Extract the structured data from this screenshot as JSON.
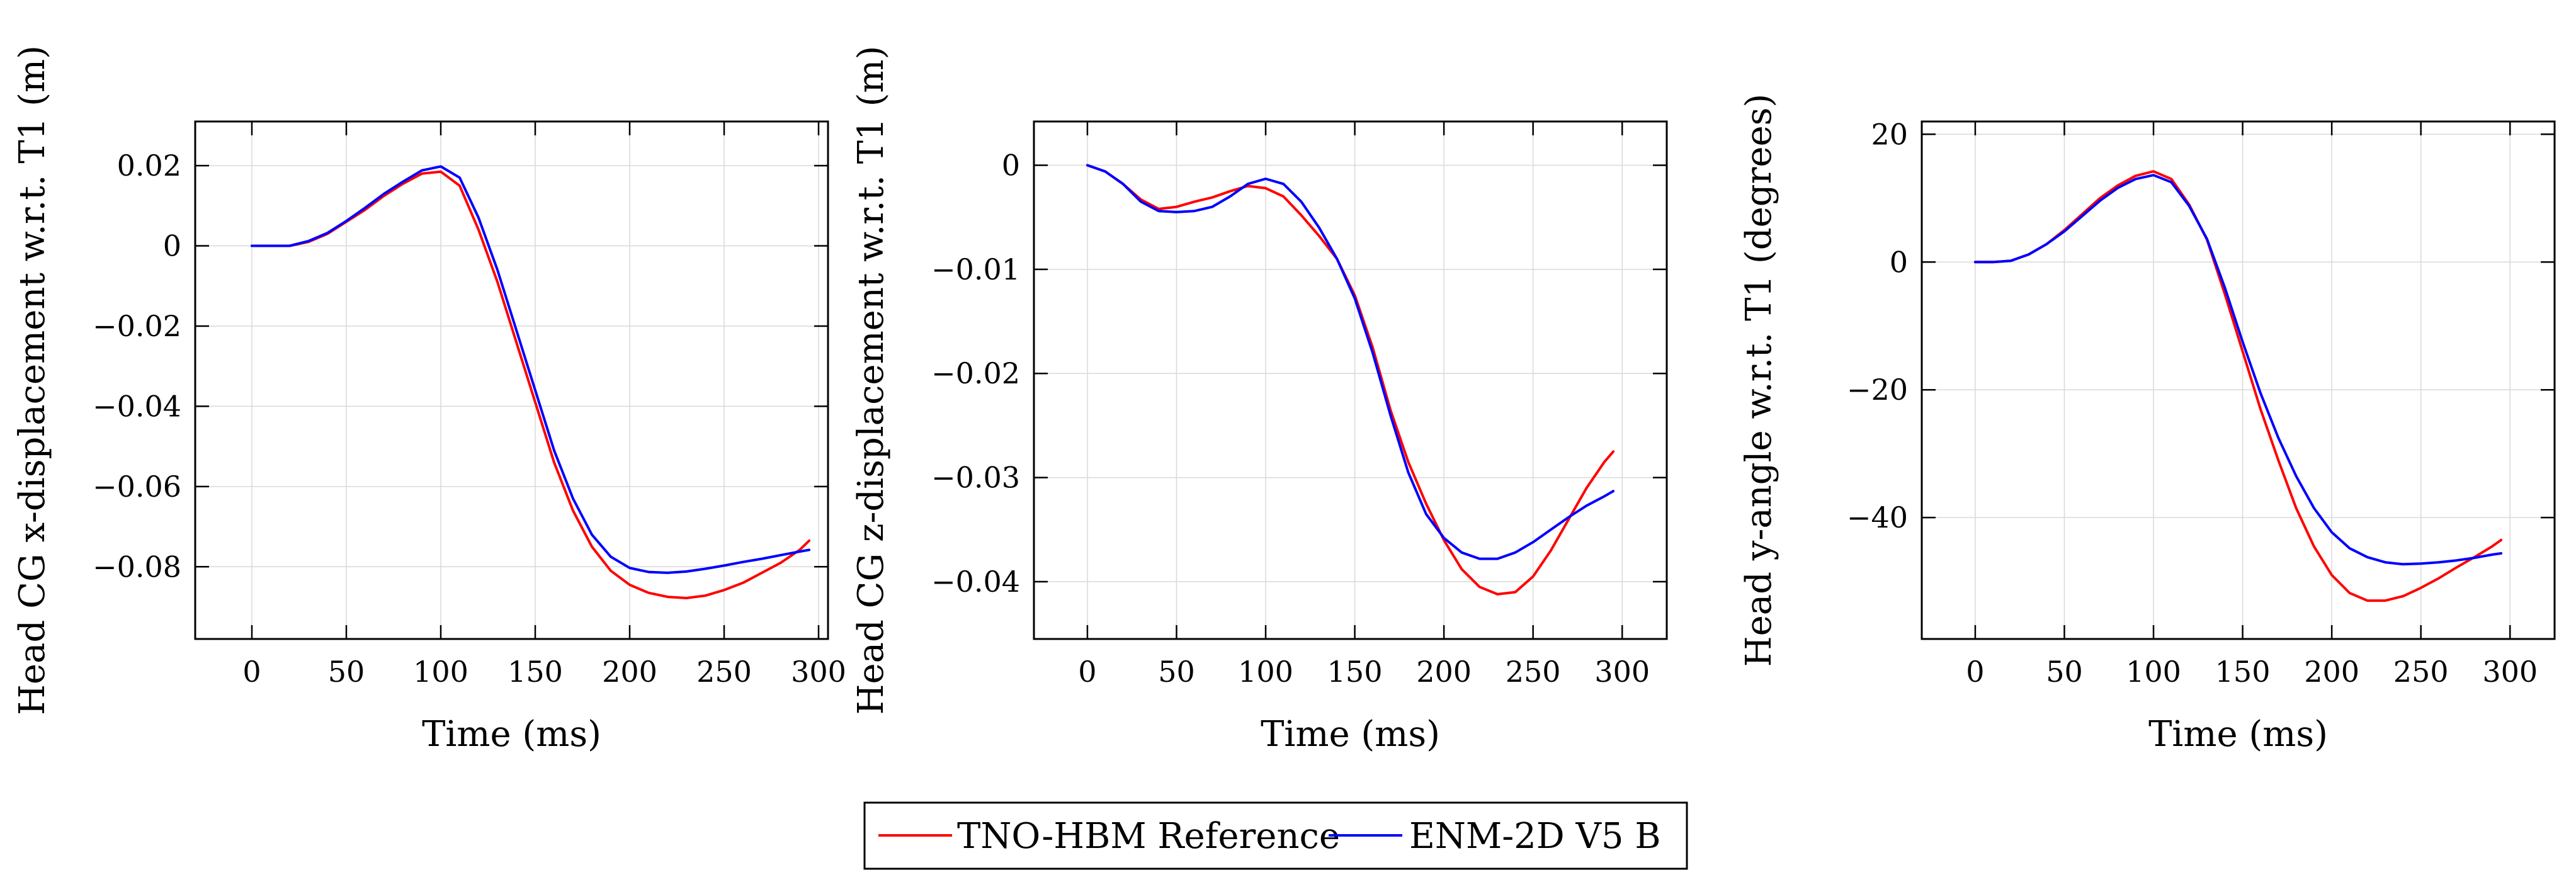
{
  "legend": {
    "entries": [
      {
        "name": "TNO-HBM Reference",
        "color": "#ff0000"
      },
      {
        "name": "ENM-2D V5 B",
        "color": "#0000ff"
      }
    ]
  },
  "chart_data": [
    {
      "type": "line",
      "title": "",
      "xlabel": "Time (ms)",
      "ylabel": "Head CG x-displacement w.r.t. T1 (m)",
      "xlim": [
        -30,
        305
      ],
      "ylim": [
        -0.098,
        0.031
      ],
      "xticks": [
        0,
        50,
        100,
        150,
        200,
        250,
        300
      ],
      "xtick_labels": [
        "0",
        "50",
        "100",
        "150",
        "200",
        "250",
        "300"
      ],
      "yticks": [
        0.02,
        0,
        -0.02,
        -0.04,
        -0.06,
        -0.08
      ],
      "ytick_labels": [
        "0.02",
        "0",
        "−0.02",
        "−0.04",
        "−0.06",
        "−0.08"
      ],
      "grid": true,
      "series": [
        {
          "name": "TNO-HBM Reference",
          "color": "#ff0000",
          "x": [
            0,
            10,
            20,
            30,
            40,
            50,
            60,
            70,
            80,
            90,
            100,
            110,
            120,
            130,
            140,
            150,
            160,
            170,
            180,
            190,
            200,
            210,
            220,
            230,
            240,
            250,
            260,
            270,
            280,
            290,
            295
          ],
          "y": [
            0,
            0,
            0,
            0.001,
            0.003,
            0.006,
            0.009,
            0.0125,
            0.0155,
            0.018,
            0.0185,
            0.015,
            0.004,
            -0.009,
            -0.024,
            -0.039,
            -0.054,
            -0.066,
            -0.075,
            -0.081,
            -0.0845,
            -0.0865,
            -0.0875,
            -0.0878,
            -0.0872,
            -0.0858,
            -0.084,
            -0.0815,
            -0.079,
            -0.0758,
            -0.0735
          ]
        },
        {
          "name": "ENM-2D V5 B",
          "color": "#0000ff",
          "x": [
            0,
            10,
            20,
            30,
            40,
            50,
            60,
            70,
            80,
            90,
            100,
            110,
            120,
            130,
            140,
            150,
            160,
            170,
            180,
            190,
            200,
            210,
            220,
            230,
            240,
            250,
            260,
            270,
            280,
            290,
            295
          ],
          "y": [
            0,
            0,
            0,
            0.0012,
            0.0032,
            0.0062,
            0.0095,
            0.013,
            0.016,
            0.0188,
            0.0198,
            0.017,
            0.007,
            -0.006,
            -0.021,
            -0.036,
            -0.051,
            -0.063,
            -0.072,
            -0.0775,
            -0.0803,
            -0.0813,
            -0.0815,
            -0.0812,
            -0.0805,
            -0.0797,
            -0.0788,
            -0.078,
            -0.0771,
            -0.0762,
            -0.0758
          ]
        }
      ]
    },
    {
      "type": "line",
      "title": "",
      "xlabel": "Time (ms)",
      "ylabel": "Head CG z-displacement w.r.t. T1 (m)",
      "xlim": [
        -30,
        325
      ],
      "ylim": [
        -0.0455,
        0.0042
      ],
      "xticks": [
        0,
        50,
        100,
        150,
        200,
        250,
        300
      ],
      "xtick_labels": [
        "0",
        "50",
        "100",
        "150",
        "200",
        "250",
        "300"
      ],
      "yticks": [
        0,
        -0.01,
        -0.02,
        -0.03,
        -0.04
      ],
      "ytick_labels": [
        "0",
        "−0.01",
        "−0.02",
        "−0.03",
        "−0.04"
      ],
      "grid": true,
      "series": [
        {
          "name": "TNO-HBM Reference",
          "color": "#ff0000",
          "x": [
            0,
            10,
            20,
            30,
            40,
            50,
            60,
            70,
            80,
            90,
            100,
            110,
            120,
            130,
            140,
            150,
            160,
            170,
            180,
            190,
            200,
            210,
            220,
            230,
            240,
            250,
            260,
            270,
            280,
            290,
            295
          ],
          "y": [
            0,
            -0.0006,
            -0.0018,
            -0.0033,
            -0.0042,
            -0.004,
            -0.0035,
            -0.0031,
            -0.0025,
            -0.002,
            -0.0022,
            -0.003,
            -0.0048,
            -0.0068,
            -0.009,
            -0.0125,
            -0.0175,
            -0.0235,
            -0.0285,
            -0.0325,
            -0.036,
            -0.0388,
            -0.0405,
            -0.0412,
            -0.041,
            -0.0395,
            -0.037,
            -0.034,
            -0.031,
            -0.0285,
            -0.0275
          ]
        },
        {
          "name": "ENM-2D V5 B",
          "color": "#0000ff",
          "x": [
            0,
            10,
            20,
            30,
            40,
            50,
            60,
            70,
            80,
            90,
            100,
            110,
            120,
            130,
            140,
            150,
            160,
            170,
            180,
            190,
            200,
            210,
            220,
            230,
            240,
            250,
            260,
            270,
            280,
            290,
            295
          ],
          "y": [
            0,
            -0.0006,
            -0.0018,
            -0.0035,
            -0.0044,
            -0.0045,
            -0.0044,
            -0.004,
            -0.003,
            -0.0018,
            -0.0013,
            -0.0018,
            -0.0035,
            -0.006,
            -0.009,
            -0.0128,
            -0.018,
            -0.024,
            -0.0295,
            -0.0335,
            -0.0358,
            -0.0372,
            -0.0378,
            -0.0378,
            -0.0372,
            -0.0362,
            -0.035,
            -0.0338,
            -0.0327,
            -0.0318,
            -0.0313
          ]
        }
      ]
    },
    {
      "type": "line",
      "title": "",
      "xlabel": "Time (ms)",
      "ylabel": "Head y-angle w.r.t. T1 (degrees)",
      "xlim": [
        -30,
        325
      ],
      "ylim": [
        -59,
        22
      ],
      "xticks": [
        0,
        50,
        100,
        150,
        200,
        250,
        300
      ],
      "xtick_labels": [
        "0",
        "50",
        "100",
        "150",
        "200",
        "250",
        "300"
      ],
      "yticks": [
        20,
        0,
        -20,
        -40
      ],
      "ytick_labels": [
        "20",
        "0",
        "−20",
        "−40"
      ],
      "grid": true,
      "series": [
        {
          "name": "TNO-HBM Reference",
          "color": "#ff0000",
          "x": [
            0,
            10,
            20,
            30,
            40,
            50,
            60,
            70,
            80,
            90,
            100,
            110,
            120,
            130,
            140,
            150,
            160,
            170,
            180,
            190,
            200,
            210,
            220,
            230,
            240,
            250,
            260,
            270,
            280,
            290,
            295
          ],
          "y": [
            0,
            0,
            0.2,
            1.2,
            2.8,
            5,
            7.5,
            10,
            12,
            13.5,
            14.2,
            13,
            9,
            3.5,
            -5,
            -14,
            -23,
            -31,
            -38.5,
            -44.5,
            -49,
            -51.8,
            -53,
            -53,
            -52.3,
            -51,
            -49.5,
            -47.8,
            -46.2,
            -44.5,
            -43.5
          ]
        },
        {
          "name": "ENM-2D V5 B",
          "color": "#0000ff",
          "x": [
            0,
            10,
            20,
            30,
            40,
            50,
            60,
            70,
            80,
            90,
            100,
            110,
            120,
            130,
            140,
            150,
            160,
            170,
            180,
            190,
            200,
            210,
            220,
            230,
            240,
            250,
            260,
            270,
            280,
            290,
            295
          ],
          "y": [
            0,
            0,
            0.2,
            1.2,
            2.8,
            4.8,
            7.2,
            9.6,
            11.6,
            13,
            13.6,
            12.5,
            8.8,
            3.6,
            -4,
            -12.5,
            -20.5,
            -27.5,
            -33.5,
            -38.5,
            -42.3,
            -44.8,
            -46.2,
            -47,
            -47.3,
            -47.2,
            -47,
            -46.7,
            -46.3,
            -45.8,
            -45.6
          ]
        }
      ]
    }
  ]
}
